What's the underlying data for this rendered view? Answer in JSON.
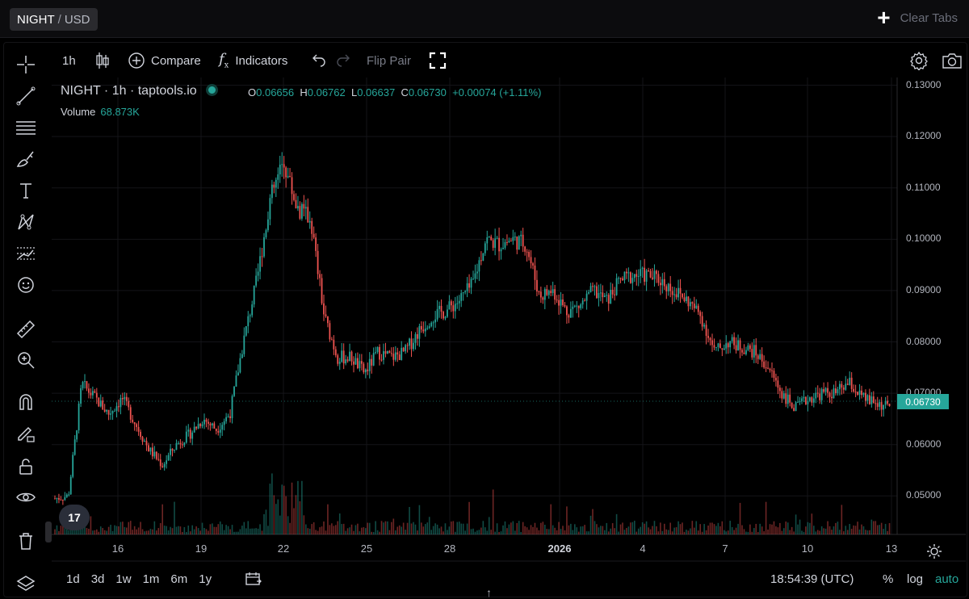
{
  "top_tab": {
    "base": "NIGHT",
    "sep": "/",
    "quote": "USD"
  },
  "clear_tabs": "Clear Tabs",
  "toolbar": {
    "interval": "1h",
    "compare": "Compare",
    "indicators": "Indicators",
    "flip_pair": "Flip Pair"
  },
  "legend": {
    "title": "NIGHT · 1h · taptools.io",
    "o_label": "O",
    "o_value": "0.06656",
    "h_label": "H",
    "h_value": "0.06762",
    "l_label": "L",
    "l_value": "0.06637",
    "c_label": "C",
    "c_value": "0.06730",
    "change": "+0.00074 (+1.11%)",
    "volume_label": "Volume",
    "volume_value": "68.873K"
  },
  "price_tag": "0.06730",
  "colors": {
    "up": "#26a69a",
    "down": "#ef5350",
    "background": "#000000",
    "grid": "#141418"
  },
  "left_tools": [
    "crosshair-icon",
    "trend-line-icon",
    "horizontal-lines-icon",
    "brush-icon",
    "text-icon",
    "pattern-icon",
    "forecast-icon",
    "emoji-icon",
    "ruler-icon",
    "zoom-in-icon",
    "magnet-icon",
    "lock-drawing-icon",
    "lock-icon",
    "eye-icon",
    "trash-icon",
    "layers-icon"
  ],
  "bottom": {
    "ranges": [
      "1d",
      "3d",
      "1w",
      "1m",
      "6m",
      "1y"
    ],
    "time": "18:54:39 (UTC)",
    "percent": "%",
    "log": "log",
    "auto": "auto"
  },
  "chart_data": {
    "type": "candlestick",
    "interval": "1h",
    "ylim": [
      0.0425,
      0.1315
    ],
    "yticks": [
      "0.13000",
      "0.12000",
      "0.11000",
      "0.10000",
      "0.09000",
      "0.08000",
      "0.07000",
      "0.06000",
      "0.05000"
    ],
    "xticks": [
      "16",
      "19",
      "22",
      "25",
      "28",
      "2026",
      "4",
      "7",
      "10",
      "13"
    ],
    "grid": true,
    "series": [
      {
        "name": "NIGHT",
        "type": "price_close_approx",
        "x": [
          "Dec 14",
          "Dec 14",
          "Dec 15",
          "Dec 15",
          "Dec 16",
          "Dec 16",
          "Dec 17",
          "Dec 17",
          "Dec 18",
          "Dec 18",
          "Dec 19",
          "Dec 19",
          "Dec 20",
          "Dec 20",
          "Dec 21",
          "Dec 21",
          "Dec 21",
          "Dec 22",
          "Dec 22",
          "Dec 22",
          "Dec 23",
          "Dec 23",
          "Dec 24",
          "Dec 24",
          "Dec 25",
          "Dec 25",
          "Dec 26",
          "Dec 26",
          "Dec 27",
          "Dec 27",
          "Dec 28",
          "Dec 28",
          "Dec 29",
          "Dec 29",
          "Dec 30",
          "Dec 30",
          "Dec 31",
          "Dec 31",
          "Jan 1",
          "Jan 1",
          "Jan 2",
          "Jan 2",
          "Jan 3",
          "Jan 3",
          "Jan 4",
          "Jan 4",
          "Jan 5",
          "Jan 5",
          "Jan 6",
          "Jan 6",
          "Jan 7",
          "Jan 7",
          "Jan 8",
          "Jan 8",
          "Jan 9",
          "Jan 9",
          "Jan 10",
          "Jan 10",
          "Jan 11",
          "Jan 11",
          "Jan 12",
          "Jan 12",
          "Jan 13"
        ],
        "values": [
          0.0495,
          0.05,
          0.0718,
          0.069,
          0.066,
          0.069,
          0.064,
          0.059,
          0.056,
          0.06,
          0.062,
          0.065,
          0.063,
          0.066,
          0.08,
          0.092,
          0.108,
          0.115,
          0.106,
          0.104,
          0.085,
          0.077,
          0.077,
          0.074,
          0.078,
          0.077,
          0.078,
          0.082,
          0.085,
          0.086,
          0.088,
          0.091,
          0.1,
          0.099,
          0.1,
          0.099,
          0.089,
          0.09,
          0.086,
          0.087,
          0.09,
          0.088,
          0.092,
          0.093,
          0.093,
          0.092,
          0.09,
          0.088,
          0.085,
          0.078,
          0.08,
          0.079,
          0.078,
          0.075,
          0.07,
          0.067,
          0.069,
          0.07,
          0.07,
          0.072,
          0.069,
          0.068,
          0.0673
        ]
      }
    ],
    "volume": {
      "name": "Volume",
      "last": "68.873K"
    }
  }
}
